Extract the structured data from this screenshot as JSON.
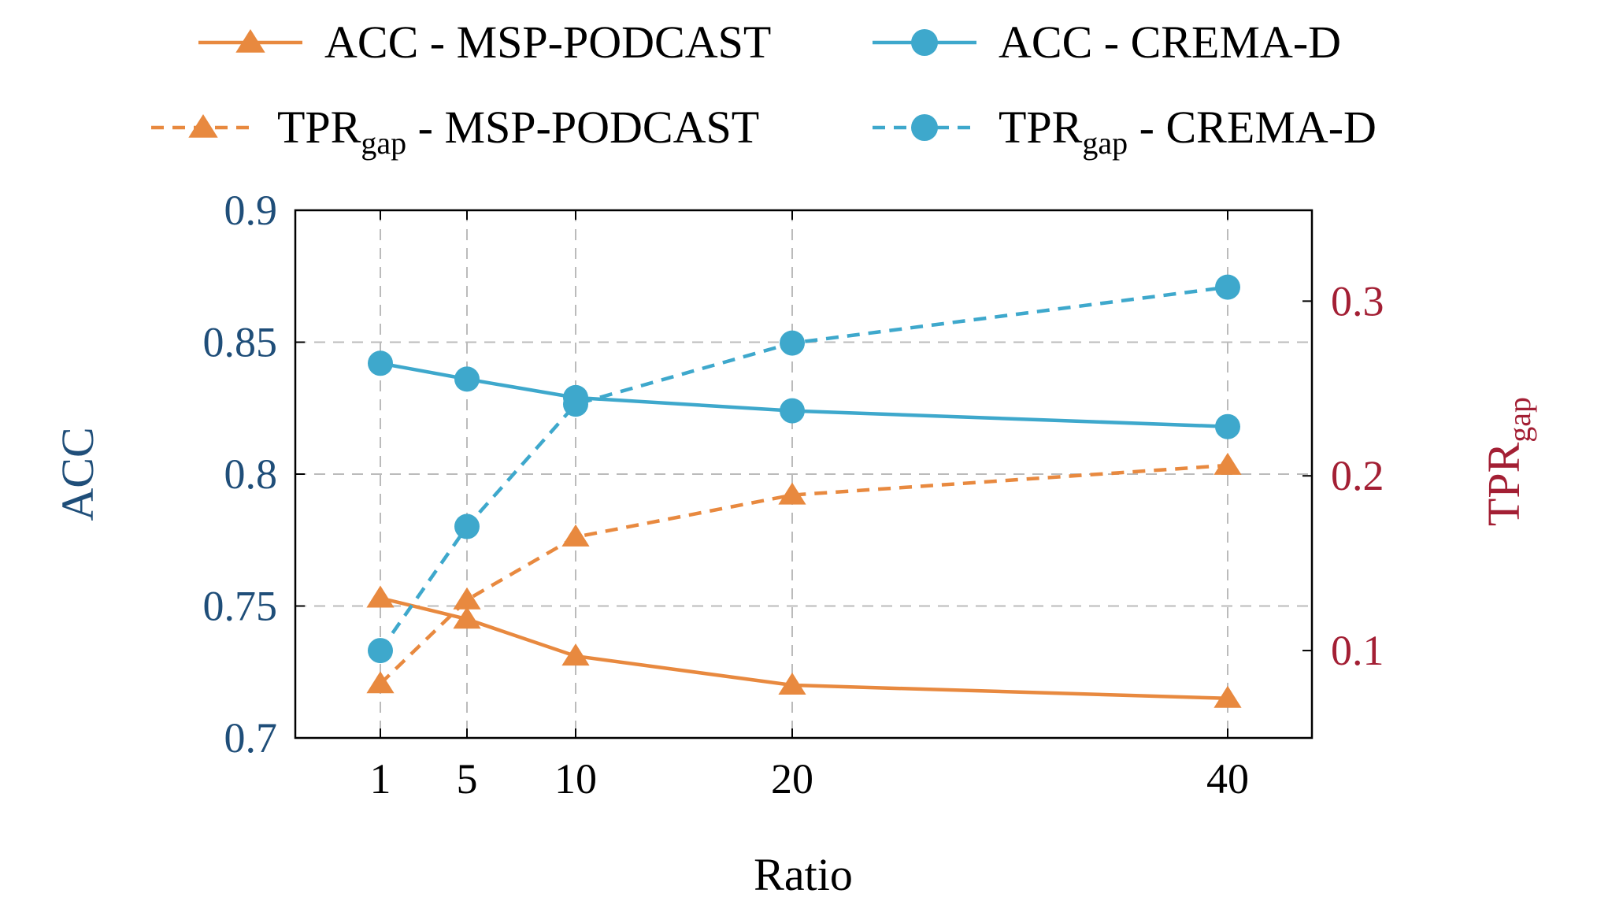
{
  "colors": {
    "acc_axis": "#1f4e79",
    "tpr_axis": "#a31f34",
    "orange": "#e8893f",
    "blue": "#3ea8cc",
    "grid": "#bbbbbb",
    "frame": "#000000",
    "text": "#000000"
  },
  "chart_data": {
    "type": "line",
    "xlabel": "Ratio",
    "ylabel_left": "ACC",
    "ylabel_right_main": "TPR",
    "ylabel_right_sub": "gap",
    "x": [
      1,
      5,
      10,
      20,
      40
    ],
    "x_tick_labels": [
      "1",
      "5",
      "10",
      "20",
      "40"
    ],
    "ylim_left": [
      0.7,
      0.9
    ],
    "yticks_left": [
      "0.7",
      "0.75",
      "0.8",
      "0.85",
      "0.9"
    ],
    "ylim_right": [
      0.05,
      0.352
    ],
    "yticks_right": [
      "0.1",
      "0.2",
      "0.3"
    ],
    "grid": true,
    "legend_placement": "top",
    "series": [
      {
        "name_main": "ACC",
        "name_sub": "",
        "name_rest": " - MSP-PODCAST",
        "axis": "left",
        "color": "orange",
        "dashed": false,
        "marker": "triangle",
        "values": [
          0.753,
          0.745,
          0.731,
          0.72,
          0.715
        ]
      },
      {
        "name_main": "ACC",
        "name_sub": "",
        "name_rest": " - CREMA-D",
        "axis": "left",
        "color": "blue",
        "dashed": false,
        "marker": "circle",
        "values": [
          0.842,
          0.836,
          0.829,
          0.824,
          0.818
        ]
      },
      {
        "name_main": "TPR",
        "name_sub": "gap",
        "name_rest": " - MSP-PODCAST",
        "axis": "right",
        "color": "orange",
        "dashed": true,
        "marker": "triangle",
        "values": [
          0.081,
          0.129,
          0.165,
          0.189,
          0.206
        ]
      },
      {
        "name_main": "TPR",
        "name_sub": "gap",
        "name_rest": " - CREMA-D",
        "axis": "right",
        "color": "blue",
        "dashed": true,
        "marker": "circle",
        "values": [
          0.1,
          0.171,
          0.241,
          0.276,
          0.308
        ]
      }
    ]
  }
}
